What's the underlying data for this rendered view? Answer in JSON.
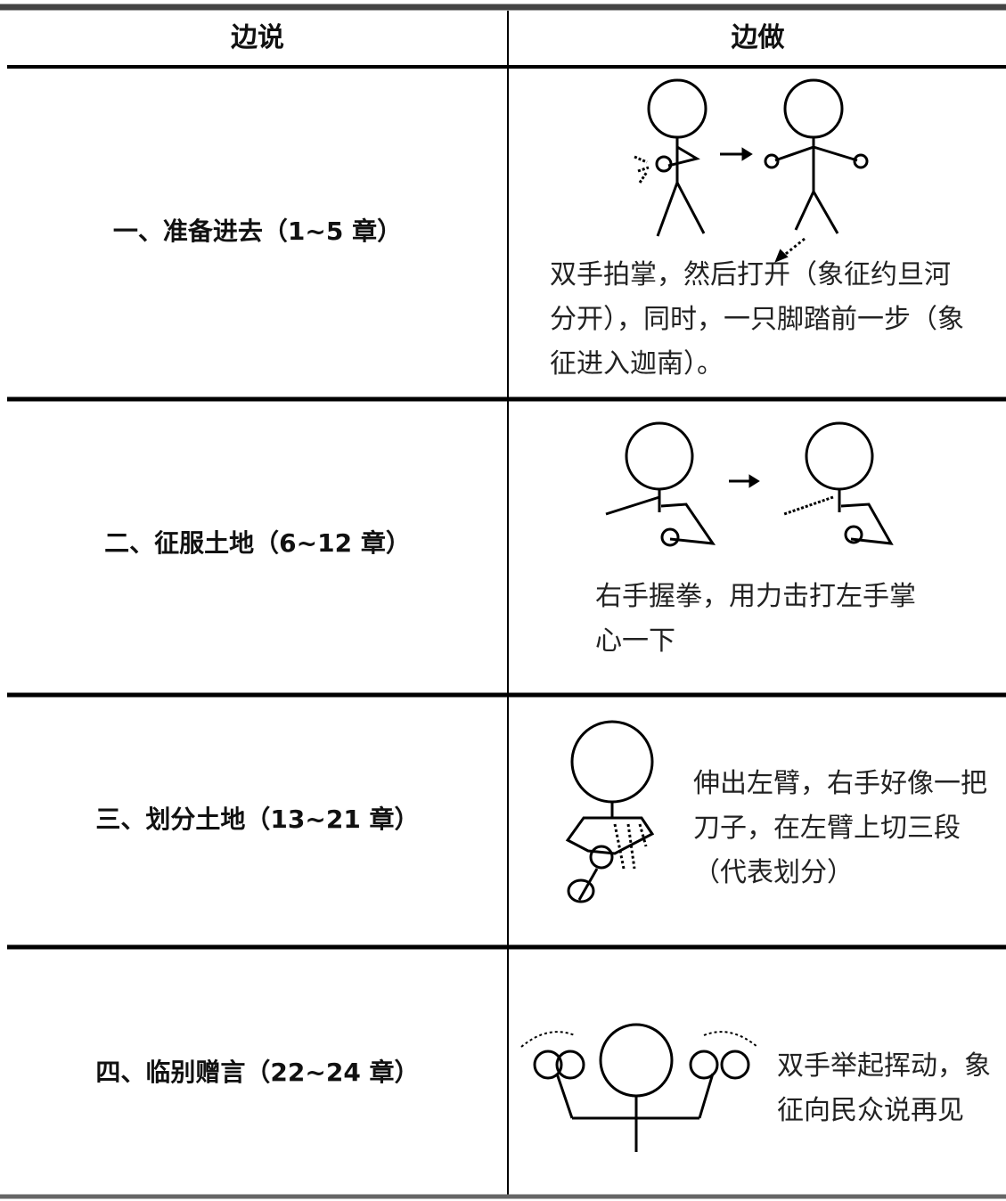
{
  "table": {
    "header": [
      "边说",
      "边做"
    ],
    "rows": [
      [
        "一、准备进去（1~5 章）",
        "双手拍掌，然后打开（象征约旦河分开），同时，一只脚踏前一步（象征进入迦南）。"
      ],
      [
        "二、征服土地（6~12 章）",
        "右手握拳，用力击打左手掌心一下"
      ],
      [
        "三、划分土地（13~21 章）",
        "伸出左臂，右手好像一把刀子，在左臂上切三段（代表划分）"
      ],
      [
        "四、临别赠言（22~24 章）",
        "双手举起挥动，象征向民众说再见"
      ]
    ]
  }
}
